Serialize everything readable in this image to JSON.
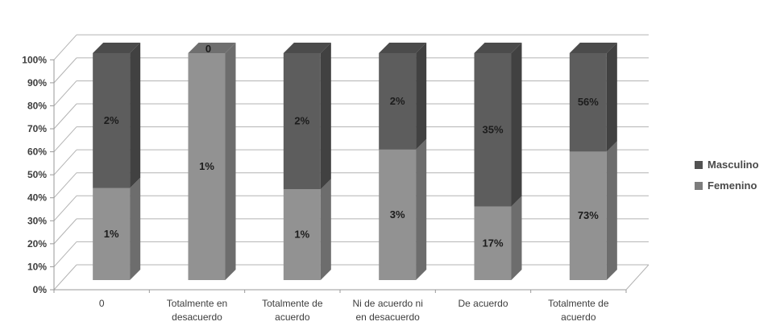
{
  "chart_data": {
    "type": "bar",
    "variant": "3d-stacked-100-percent-column",
    "title": "",
    "xlabel": "",
    "ylabel": "",
    "categories": [
      "0",
      "Totalmente en desacuerdo",
      "Totalmente de acuerdo",
      "Ni de acuerdo ni en desacuerdo",
      "De acuerdo",
      "Totalmente de acuerdo"
    ],
    "category_lines": [
      [
        "0"
      ],
      [
        "Totalmente en",
        "desacuerdo"
      ],
      [
        "Totalmente de",
        "acuerdo"
      ],
      [
        "Ni de acuerdo ni",
        "en desacuerdo"
      ],
      [
        "De acuerdo"
      ],
      [
        "Totalmente de",
        "acuerdo"
      ]
    ],
    "series": [
      {
        "name": "Masculino",
        "values": [
          2,
          0,
          2,
          2,
          35,
          56
        ],
        "labels": [
          "2%",
          "0",
          "2%",
          "2%",
          "35%",
          "56%"
        ]
      },
      {
        "name": "Femenino",
        "values": [
          1,
          1,
          1,
          3,
          17,
          73
        ],
        "labels": [
          "1%",
          "1%",
          "1%",
          "3%",
          "17%",
          "73%"
        ]
      }
    ],
    "stacked_fraction_femenino": [
      0.405,
      1.0,
      0.4,
      0.575,
      0.324,
      0.566
    ],
    "y_ticks": [
      "0%",
      "10%",
      "20%",
      "30%",
      "40%",
      "50%",
      "60%",
      "70%",
      "80%",
      "90%",
      "100%"
    ],
    "ylim": [
      0,
      100
    ],
    "grid": true,
    "legend_position": "right"
  },
  "colors": {
    "background": "#ffffff",
    "masc_front": "#5d5d5d",
    "masc_side": "#414141",
    "masc_top": "#4b4b4b",
    "fem_front": "#929292",
    "fem_side": "#6d6d6d",
    "fem_top": "#6f6f6f",
    "gridline": "#b3b3b3",
    "axis_line": "#9a9a9a",
    "axis_text": "#3d3d3d",
    "data_label": "#1c1c1c",
    "legend_masc": "#525252",
    "legend_fem": "#7d7d7d",
    "legend_text": "#4a4a4a"
  }
}
